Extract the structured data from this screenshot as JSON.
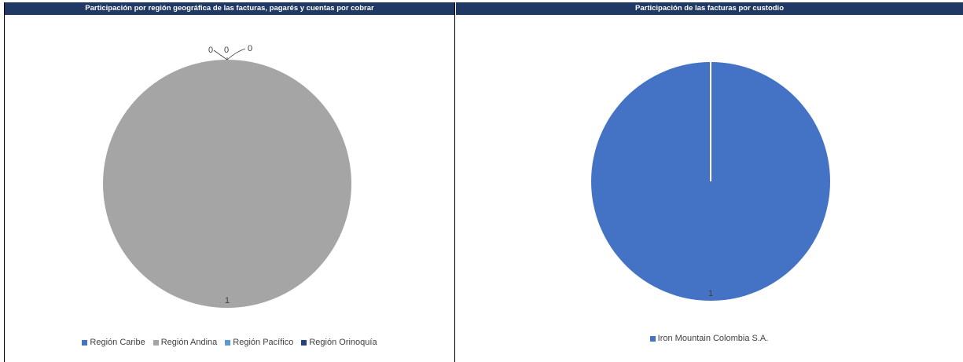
{
  "chart_data": [
    {
      "type": "pie",
      "title": "Participación por región geográfica de las facturas, pagarés y cuentas por cobrar",
      "categories": [
        "Región Caribe",
        "Región Andina",
        "Región Pacífico",
        "Región Orinoquía"
      ],
      "values": [
        0,
        1,
        0,
        0
      ],
      "data_labels": [
        "0",
        "1",
        "0",
        "0"
      ],
      "colors": [
        "#4472c4",
        "#a5a5a5",
        "#5b9bd5",
        "#264478"
      ],
      "legend": "bottom"
    },
    {
      "type": "pie",
      "title": "Participación de las facturas por custodio",
      "categories": [
        "Iron Mountain Colombia S.A."
      ],
      "values": [
        1
      ],
      "data_labels": [
        "1"
      ],
      "colors": [
        "#4472c4"
      ],
      "legend": "bottom"
    }
  ]
}
